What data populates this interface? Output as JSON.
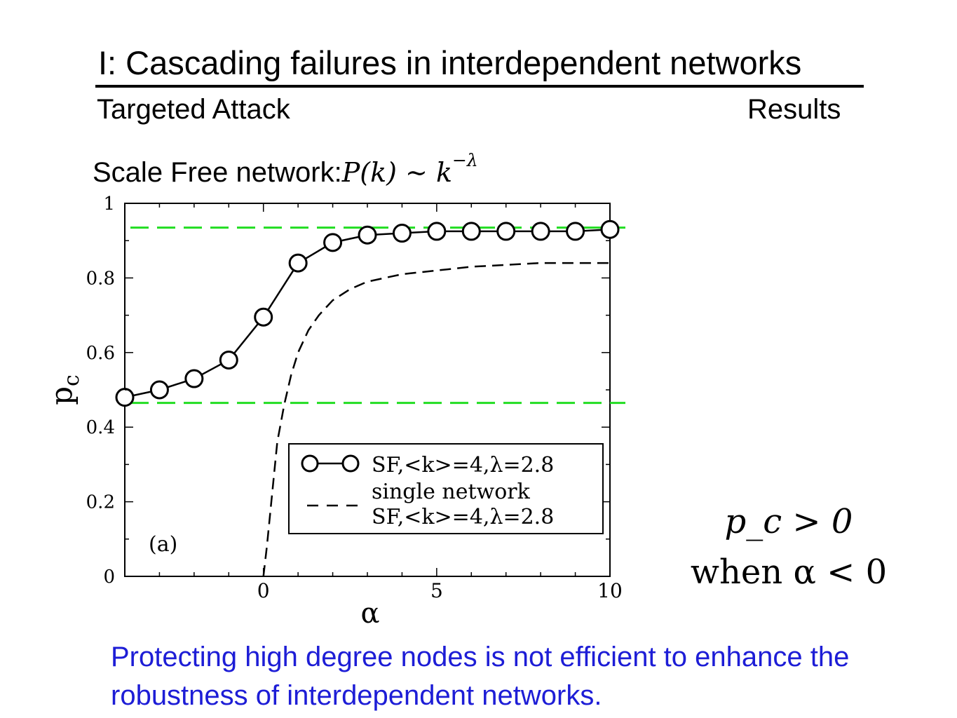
{
  "slide": {
    "title": "I: Cascading failures in interdependent networks",
    "subtitle_left": "Targeted Attack",
    "subtitle_right": "Results",
    "network_label": "Scale Free network:",
    "network_formula": "P(k) ∼ k",
    "network_formula_exponent": "−λ",
    "condition_line1": "p_c > 0",
    "condition_line2": "when α < 0",
    "message": "Protecting high degree nodes is not efficient to enhance the robustness of interdependent networks."
  },
  "chart_data": {
    "type": "line",
    "xlabel": "α",
    "ylabel": "p_c",
    "panel_label": "(a)",
    "xlim": [
      -4,
      10
    ],
    "ylim": [
      0,
      1
    ],
    "x_ticks": [
      0,
      5,
      10
    ],
    "y_ticks": [
      "0",
      "0.2",
      "0.4",
      "0.6",
      "0.8",
      "1"
    ],
    "y_tick_values": [
      0,
      0.2,
      0.4,
      0.6,
      0.8,
      1
    ],
    "grid": false,
    "legend_position": "bottom-right",
    "series": [
      {
        "name": "SF,<k>=4,λ=2.8",
        "style": "solid-circles",
        "color": "#000000",
        "x": [
          -4,
          -3,
          -2,
          -1,
          0,
          1,
          2,
          3,
          4,
          5,
          6,
          7,
          8,
          9,
          10
        ],
        "y": [
          0.48,
          0.5,
          0.53,
          0.58,
          0.695,
          0.84,
          0.895,
          0.915,
          0.92,
          0.925,
          0.925,
          0.925,
          0.925,
          0.925,
          0.93
        ]
      },
      {
        "name": "single network",
        "name_line2": "SF,<k>=4,λ=2.8",
        "style": "dashed",
        "color": "#000000",
        "x": [
          0,
          0.1,
          0.25,
          0.4,
          0.6,
          0.8,
          1.0,
          1.3,
          1.6,
          2.0,
          2.5,
          3.0,
          3.5,
          4.0,
          5.0,
          6.0,
          7.0,
          8.0,
          9.0,
          10.0
        ],
        "y": [
          0.0,
          0.08,
          0.22,
          0.36,
          0.46,
          0.54,
          0.6,
          0.66,
          0.7,
          0.74,
          0.77,
          0.79,
          0.8,
          0.81,
          0.82,
          0.83,
          0.835,
          0.84,
          0.84,
          0.84
        ]
      }
    ],
    "reference_lines": [
      {
        "y": 0.935,
        "color": "#22dd22",
        "style": "dashed"
      },
      {
        "y": 0.465,
        "color": "#22dd22",
        "style": "dashed"
      }
    ]
  }
}
